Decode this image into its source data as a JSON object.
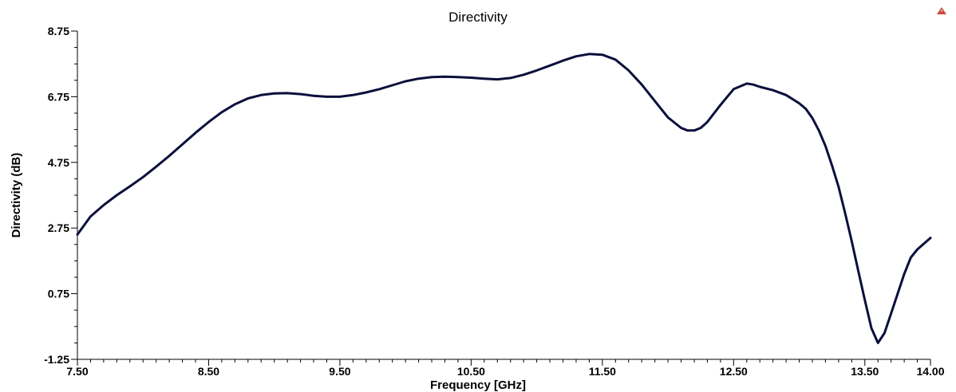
{
  "chart_data": {
    "type": "line",
    "title": "Directivity",
    "xlabel": "Frequency [GHz]",
    "ylabel": "Directivity (dB)",
    "xlim": [
      7.5,
      14.0
    ],
    "ylim": [
      -1.25,
      8.75
    ],
    "xticks": [
      "7.50",
      "8.50",
      "9.50",
      "10.50",
      "11.50",
      "12.50",
      "13.50",
      "14.00"
    ],
    "xtick_values": [
      7.5,
      8.5,
      9.5,
      10.5,
      11.5,
      12.5,
      13.5,
      14.0
    ],
    "yticks": [
      "8.75",
      "6.75",
      "4.75",
      "2.75",
      "0.75",
      "-1.25"
    ],
    "ytick_values": [
      8.75,
      6.75,
      4.75,
      2.75,
      0.75,
      -1.25
    ],
    "grid": false,
    "series": [
      {
        "color": "#0a0f3c",
        "x": [
          7.5,
          7.6,
          7.7,
          7.8,
          7.9,
          8.0,
          8.1,
          8.2,
          8.3,
          8.4,
          8.5,
          8.6,
          8.7,
          8.8,
          8.9,
          9.0,
          9.1,
          9.2,
          9.3,
          9.4,
          9.5,
          9.6,
          9.7,
          9.8,
          9.9,
          10.0,
          10.1,
          10.2,
          10.3,
          10.4,
          10.5,
          10.6,
          10.7,
          10.8,
          10.9,
          11.0,
          11.1,
          11.2,
          11.3,
          11.4,
          11.5,
          11.6,
          11.7,
          11.8,
          11.9,
          12.0,
          12.1,
          12.15,
          12.2,
          12.25,
          12.3,
          12.4,
          12.5,
          12.6,
          12.65,
          12.7,
          12.8,
          12.9,
          13.0,
          13.05,
          13.1,
          13.15,
          13.2,
          13.25,
          13.3,
          13.35,
          13.4,
          13.45,
          13.5,
          13.55,
          13.6,
          13.65,
          13.7,
          13.75,
          13.8,
          13.85,
          13.9,
          14.0
        ],
        "y": [
          2.55,
          3.1,
          3.45,
          3.75,
          4.02,
          4.3,
          4.62,
          4.95,
          5.3,
          5.65,
          5.98,
          6.28,
          6.52,
          6.7,
          6.8,
          6.85,
          6.86,
          6.83,
          6.78,
          6.75,
          6.75,
          6.8,
          6.88,
          6.98,
          7.1,
          7.22,
          7.3,
          7.35,
          7.36,
          7.35,
          7.33,
          7.3,
          7.28,
          7.32,
          7.42,
          7.55,
          7.7,
          7.85,
          7.98,
          8.05,
          8.03,
          7.88,
          7.55,
          7.12,
          6.62,
          6.12,
          5.8,
          5.72,
          5.72,
          5.8,
          5.98,
          6.5,
          6.98,
          7.15,
          7.12,
          7.05,
          6.95,
          6.8,
          6.55,
          6.38,
          6.1,
          5.72,
          5.25,
          4.65,
          4.0,
          3.2,
          2.35,
          1.45,
          0.55,
          -0.3,
          -0.75,
          -0.45,
          0.15,
          0.75,
          1.35,
          1.85,
          2.1,
          2.45
        ]
      }
    ]
  },
  "corner_icon": "warning-triangle-icon"
}
